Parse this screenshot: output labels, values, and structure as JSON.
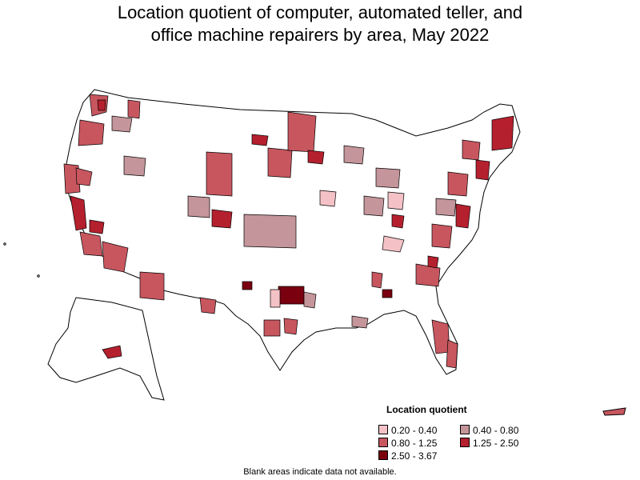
{
  "title": "Location quotient of computer, automated teller, and\noffice machine repairers by area, May 2022",
  "legend": {
    "title": "Location quotient",
    "items": [
      {
        "label": "0.20 - 0.40",
        "color": "#f4c2c6"
      },
      {
        "label": "0.40 - 0.80",
        "color": "#c4959a"
      },
      {
        "label": "0.80 - 1.25",
        "color": "#c8565f"
      },
      {
        "label": "1.25 - 2.50",
        "color": "#b5202e"
      },
      {
        "label": "2.50 - 3.67",
        "color": "#7a0010"
      }
    ]
  },
  "footnote": "Blank areas indicate data not available.",
  "map": {
    "outline_color": "#000000",
    "no_data_color": "#ffffff",
    "features": [
      "contiguous-us",
      "alaska",
      "hawaii",
      "puerto-rico"
    ]
  }
}
